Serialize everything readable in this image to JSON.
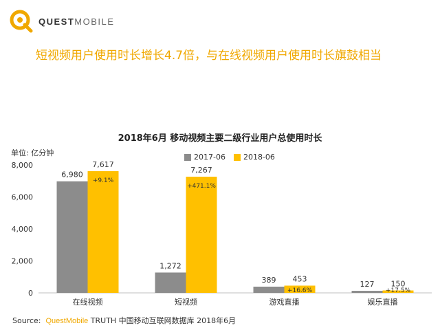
{
  "brand": {
    "part1": "QUEST",
    "part2": "MOBILE"
  },
  "headline": "短视频用户使用时长增长4.7倍，与在线视频用户使用时长旗鼓相当",
  "chart_data": {
    "type": "bar",
    "title": "2018年6月 移动视频主要二级行业用户总使用时长",
    "unit_label": "单位: 亿分钟",
    "categories": [
      "在线视频",
      "短视频",
      "游戏直播",
      "娱乐直播"
    ],
    "series": [
      {
        "name": "2017-06",
        "color": "#8c8c8c",
        "values": [
          6980,
          1272,
          389,
          127
        ]
      },
      {
        "name": "2018-06",
        "color": "#ffc000",
        "values": [
          7617,
          7267,
          453,
          150
        ]
      }
    ],
    "value_labels": {
      "2017-06": [
        "6,980",
        "1,272",
        "389",
        "127"
      ],
      "2018-06": [
        "7,617",
        "7,267",
        "453",
        "150"
      ]
    },
    "growth_labels": [
      "+9.1%",
      "+471.1%",
      "+16.6%",
      "+17.5%"
    ],
    "yticks": [
      "0",
      "2,000",
      "4,000",
      "6,000",
      "8,000"
    ],
    "ytick_values": [
      0,
      2000,
      4000,
      6000,
      8000
    ],
    "ylim": [
      0,
      8000
    ],
    "grid": false,
    "legend_position": "top-center"
  },
  "source": {
    "prefix": "Source:",
    "brand": "QuestMobile",
    "rest": " TRUTH 中国移动互联网数据库 2018年6月"
  }
}
